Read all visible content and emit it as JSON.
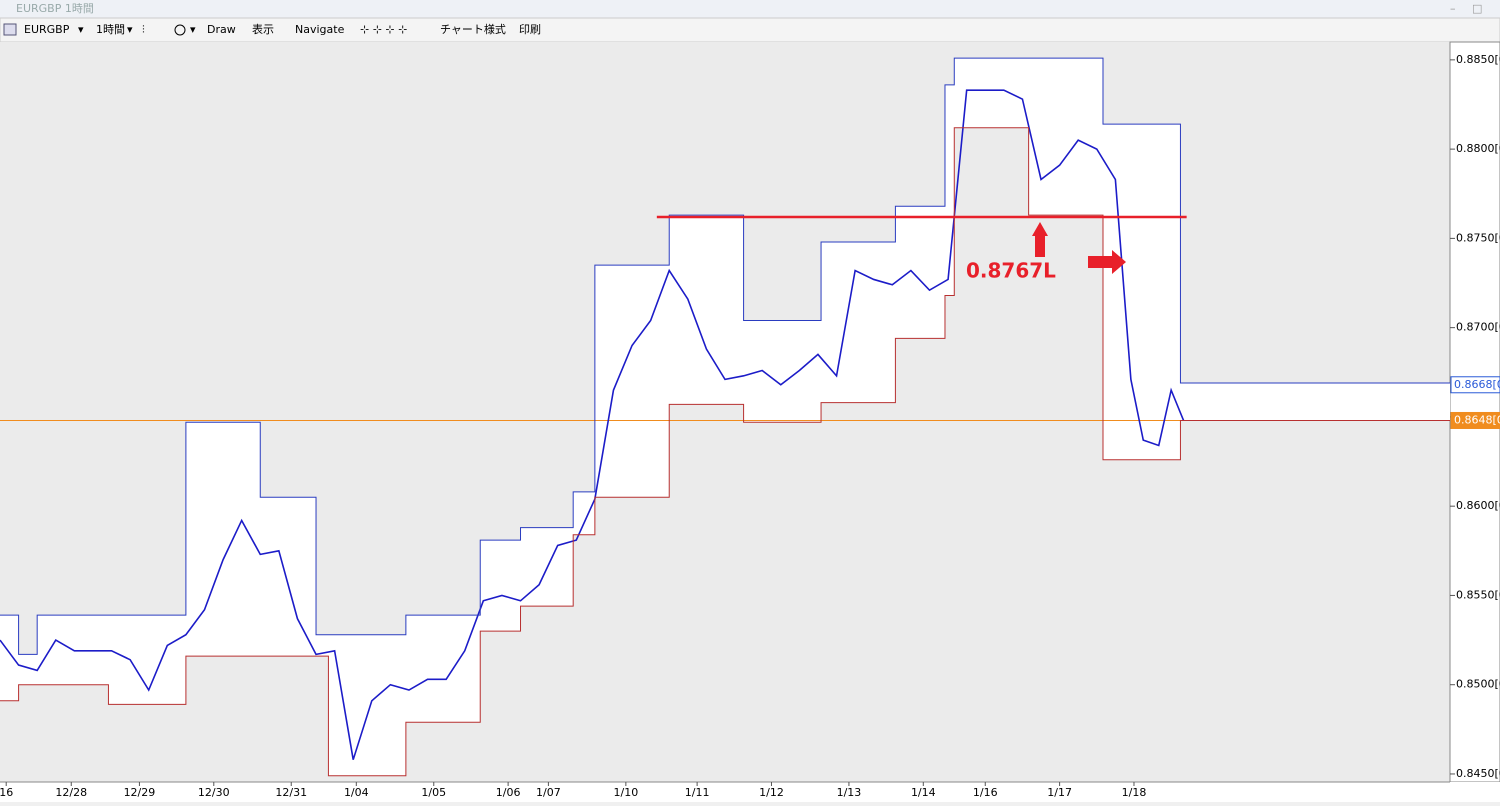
{
  "window": {
    "title": "EURGBP 1時間"
  },
  "toolbar": {
    "symbol": "EURGBP",
    "timeframe": "1時間",
    "draw": "Draw",
    "view": "表示",
    "navigate": "Navigate",
    "chart_style": "チャート様式",
    "print": "印刷"
  },
  "chart_data": {
    "type": "line",
    "xlim": [
      0,
      468
    ],
    "ylim": [
      0.84455,
      0.886
    ],
    "xticks": [
      {
        "value": 2,
        "label": "16"
      },
      {
        "value": 23,
        "label": "12/28"
      },
      {
        "value": 45,
        "label": "12/29"
      },
      {
        "value": 69,
        "label": "12/30"
      },
      {
        "value": 94,
        "label": "12/31"
      },
      {
        "value": 115,
        "label": "1/04"
      },
      {
        "value": 140,
        "label": "1/05"
      },
      {
        "value": 164,
        "label": "1/06"
      },
      {
        "value": 177,
        "label": "1/07"
      },
      {
        "value": 202,
        "label": "1/10"
      },
      {
        "value": 225,
        "label": "1/11"
      },
      {
        "value": 249,
        "label": "1/12"
      },
      {
        "value": 274,
        "label": "1/13"
      },
      {
        "value": 298,
        "label": "1/14"
      },
      {
        "value": 318,
        "label": "1/16"
      },
      {
        "value": 342,
        "label": "1/17"
      },
      {
        "value": 366,
        "label": "1/18"
      }
    ],
    "yticks": [
      {
        "value": 0.845,
        "label": "0.8450[0"
      },
      {
        "value": 0.85,
        "label": "0.8500[0"
      },
      {
        "value": 0.855,
        "label": "0.8550[0"
      },
      {
        "value": 0.86,
        "label": "0.8600[0"
      },
      {
        "value": 0.865,
        "label": "0.8650[0"
      },
      {
        "value": 0.87,
        "label": "0.8700[0"
      },
      {
        "value": 0.875,
        "label": "0.8750[0"
      },
      {
        "value": 0.88,
        "label": "0.8800[0"
      },
      {
        "value": 0.885,
        "label": "0.8850[0"
      }
    ],
    "series": [
      {
        "color": "#1c1cc8",
        "x": [
          0,
          6,
          12,
          18,
          24,
          30,
          36,
          42,
          48,
          54,
          60,
          66,
          72,
          78,
          84,
          90,
          96,
          102,
          108,
          114,
          120,
          126,
          132,
          138,
          144,
          150,
          156,
          162,
          168,
          174,
          180,
          186,
          192,
          198,
          204,
          210,
          216,
          222,
          228,
          234,
          240,
          246,
          252,
          258,
          264,
          270,
          276,
          282,
          288,
          294,
          300,
          306,
          312,
          318,
          324,
          330,
          336,
          342,
          348,
          354,
          360,
          365,
          369,
          374,
          378,
          382
        ],
        "values": [
          0.8525,
          0.8511,
          0.8508,
          0.8525,
          0.8519,
          0.8519,
          0.8519,
          0.8514,
          0.8497,
          0.8522,
          0.8528,
          0.8542,
          0.857,
          0.8592,
          0.8573,
          0.8575,
          0.8537,
          0.8517,
          0.8519,
          0.8458,
          0.8491,
          0.85,
          0.8497,
          0.8503,
          0.8503,
          0.8519,
          0.8547,
          0.855,
          0.8547,
          0.8556,
          0.8578,
          0.8581,
          0.8604,
          0.8665,
          0.869,
          0.8704,
          0.8732,
          0.8716,
          0.8688,
          0.8671,
          0.8673,
          0.8676,
          0.8668,
          0.8676,
          0.8685,
          0.8673,
          0.8732,
          0.8727,
          0.8724,
          0.8732,
          0.8721,
          0.8727,
          0.8833,
          0.8833,
          0.8833,
          0.8828,
          0.8783,
          0.8791,
          0.8805,
          0.88,
          0.8783,
          0.8671,
          0.8637,
          0.8634,
          0.8665,
          0.8648
        ]
      },
      {
        "color": "#2a3cc0",
        "step": true,
        "x": [
          0,
          6,
          12,
          60,
          84,
          102,
          131,
          155,
          168,
          185,
          192,
          216,
          240,
          265,
          289,
          305,
          308,
          356,
          381,
          468
        ],
        "values": [
          0.8539,
          0.8517,
          0.8539,
          0.8647,
          0.8605,
          0.8528,
          0.8539,
          0.8581,
          0.8588,
          0.8608,
          0.8735,
          0.8763,
          0.8704,
          0.8748,
          0.8768,
          0.8836,
          0.8851,
          0.8814,
          0.8669,
          0.8669
        ]
      },
      {
        "color": "#b83030",
        "step": true,
        "x": [
          0,
          6,
          35,
          60,
          106,
          131,
          155,
          168,
          185,
          192,
          216,
          240,
          265,
          289,
          305,
          308,
          332,
          356,
          381,
          468
        ],
        "values": [
          0.8491,
          0.85,
          0.8489,
          0.8516,
          0.8449,
          0.8479,
          0.853,
          0.8544,
          0.8584,
          0.8605,
          0.8657,
          0.8647,
          0.8658,
          0.8694,
          0.8718,
          0.8812,
          0.8763,
          0.8626,
          0.8648,
          0.8648
        ]
      }
    ],
    "hline": {
      "value": 0.8762,
      "x": [
        212,
        383
      ],
      "color": "#e8202a"
    },
    "annotation": "0.8767L",
    "price_tags": [
      {
        "value": 0.8668,
        "label": "0.8668[0",
        "color": "#2a5ad8"
      },
      {
        "value": 0.8648,
        "label": "0.8648[0",
        "color": "#f08c1e"
      }
    ]
  }
}
